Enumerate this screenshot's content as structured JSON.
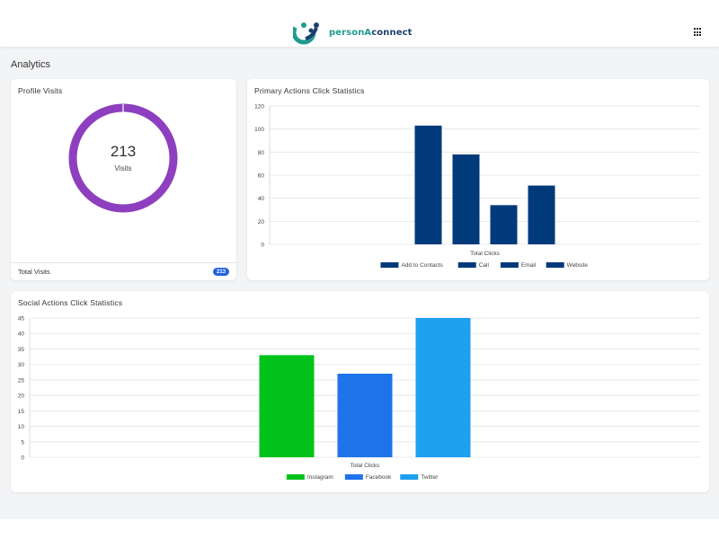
{
  "header": {
    "brand_part1": "personA",
    "brand_part2": "connect"
  },
  "page": {
    "title": "Analytics"
  },
  "profile": {
    "title": "Profile Visits",
    "visits_value": "213",
    "visits_label": "Visits",
    "footer_label": "Total Visits",
    "badge": "213",
    "ring_color": "#8e3fbf"
  },
  "colors": {
    "primary_bar": "#003a7a",
    "instagram": "#00c21a",
    "facebook": "#1e73e8",
    "twitter": "#1e9ff0"
  },
  "chart_data": [
    {
      "type": "bar",
      "title": "Primary Actions Click Statistics",
      "xlabel": "Total Clicks",
      "ylabel": "",
      "ylim": [
        0,
        120
      ],
      "yticks": [
        0,
        20,
        40,
        60,
        80,
        100,
        120
      ],
      "series": [
        {
          "name": "Add to Contacts",
          "values": [
            103
          ],
          "color": "#003a7a"
        },
        {
          "name": "Call",
          "values": [
            78
          ],
          "color": "#003a7a"
        },
        {
          "name": "Email",
          "values": [
            34
          ],
          "color": "#003a7a"
        },
        {
          "name": "Website",
          "values": [
            51
          ],
          "color": "#003a7a"
        }
      ],
      "legend": "bottom",
      "grid": true
    },
    {
      "type": "bar",
      "title": "Social Actions Click Statistics",
      "xlabel": "Total Clicks",
      "ylabel": "",
      "ylim": [
        0,
        45
      ],
      "yticks": [
        0,
        5,
        10,
        15,
        20,
        25,
        30,
        35,
        40,
        45
      ],
      "series": [
        {
          "name": "Instagram",
          "values": [
            33
          ],
          "color": "#00c21a"
        },
        {
          "name": "Facebook",
          "values": [
            27
          ],
          "color": "#1e73e8"
        },
        {
          "name": "Twitter",
          "values": [
            45
          ],
          "color": "#1e9ff0"
        }
      ],
      "legend": "bottom",
      "grid": true
    }
  ]
}
